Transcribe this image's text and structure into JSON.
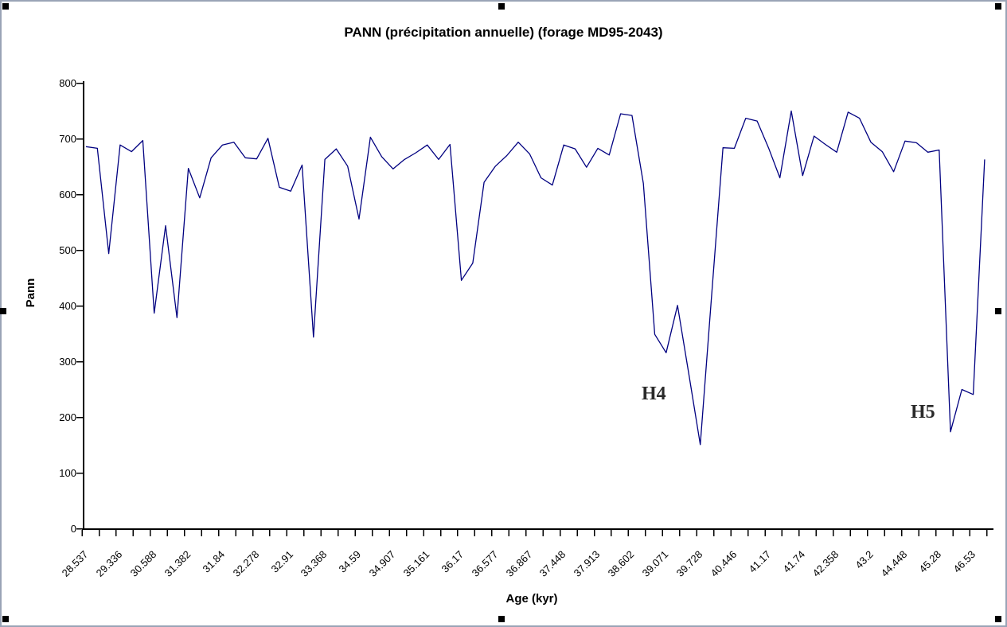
{
  "window": {
    "selection_handles": 8,
    "frame_color": "#9aa4b6",
    "handle_color": "#000000"
  },
  "chart_data": {
    "type": "line",
    "title": "PANN (précipitation annuelle) (forage MD95-2043)",
    "xlabel": "Age (kyr)",
    "ylabel": "Pann",
    "ylim": [
      0,
      800
    ],
    "y_ticks": [
      "0",
      "100",
      "200",
      "300",
      "400",
      "500",
      "600",
      "700",
      "800"
    ],
    "grid": false,
    "legend": "none",
    "line_color": "#000080",
    "categories": [
      "28.537",
      "29.336",
      "30.588",
      "31.382",
      "31.84",
      "32.278",
      "32.91",
      "33.368",
      "34.59",
      "34.907",
      "35.161",
      "36.17",
      "36.577",
      "36.867",
      "37.448",
      "37.913",
      "38.602",
      "39.071",
      "39.728",
      "40.446",
      "41.17",
      "41.74",
      "42.358",
      "43.2",
      "44.448",
      "45.28",
      "46.53"
    ],
    "points_per_label": 3,
    "values": [
      686,
      683,
      494,
      689,
      677,
      697,
      387,
      544,
      379,
      647,
      594,
      666,
      689,
      694,
      666,
      664,
      701,
      613,
      606,
      653,
      344,
      663,
      682,
      651,
      556,
      703,
      668,
      646,
      663,
      675,
      689,
      663,
      690,
      446,
      477,
      622,
      651,
      670,
      694,
      673,
      630,
      617,
      689,
      682,
      649,
      683,
      671,
      745,
      742,
      620,
      349,
      316,
      401,
      277,
      151,
      418,
      684,
      683,
      737,
      732,
      684,
      630,
      750,
      634,
      705,
      690,
      676,
      748,
      737,
      694,
      677,
      641,
      696,
      693,
      676,
      680,
      174,
      250,
      241,
      663
    ],
    "annotations": [
      {
        "text": "H4"
      },
      {
        "text": "H5"
      }
    ]
  }
}
